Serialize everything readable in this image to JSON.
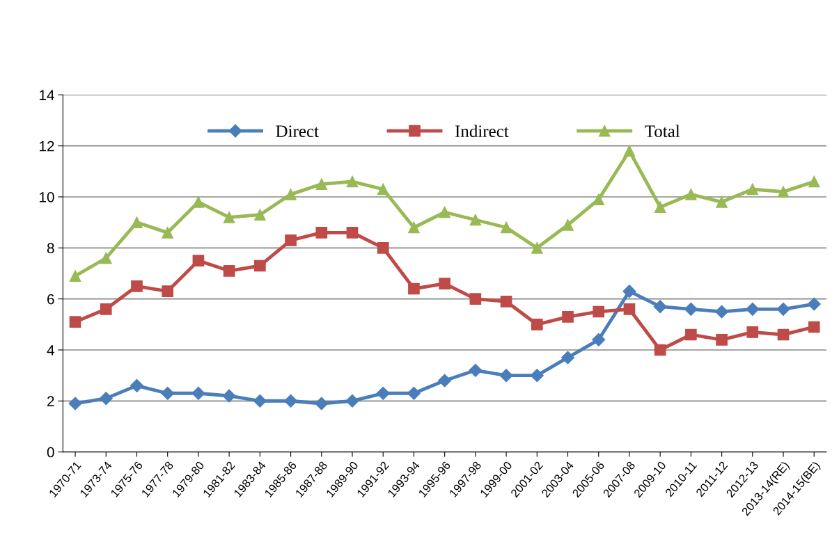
{
  "chart_data": {
    "type": "line",
    "categories": [
      "1970-71",
      "1973-74",
      "1975-76",
      "1977-78",
      "1979-80",
      "1981-82",
      "1983-84",
      "1985-86",
      "1987-88",
      "1989-90",
      "1991-92",
      "1993-94",
      "1995-96",
      "1997-98",
      "1999-00",
      "2001-02",
      "2003-04",
      "2005-06",
      "2007-08",
      "2009-10",
      "2010-11",
      "2011-12",
      "2012-13",
      "2013-14(RE)",
      "2014-15(BE)"
    ],
    "series": [
      {
        "name": "Direct",
        "color": "#4a7ebb",
        "marker": "diamond",
        "values": [
          1.9,
          2.1,
          2.6,
          2.3,
          2.3,
          2.2,
          2.0,
          2.0,
          1.9,
          2.0,
          2.3,
          2.3,
          2.8,
          3.2,
          3.0,
          3.0,
          3.7,
          4.4,
          6.3,
          5.7,
          5.6,
          5.5,
          5.6,
          5.6,
          5.8
        ]
      },
      {
        "name": "Indirect",
        "color": "#be4b48",
        "marker": "square",
        "values": [
          5.1,
          5.6,
          6.5,
          6.3,
          7.5,
          7.1,
          7.3,
          8.3,
          8.6,
          8.6,
          8.0,
          6.4,
          6.6,
          6.0,
          5.9,
          5.0,
          5.3,
          5.5,
          5.6,
          4.0,
          4.6,
          4.4,
          4.7,
          4.6,
          4.9
        ]
      },
      {
        "name": "Total",
        "color": "#98b954",
        "marker": "triangle",
        "values": [
          6.9,
          7.6,
          9.0,
          8.6,
          9.8,
          9.2,
          9.3,
          10.1,
          10.5,
          10.6,
          10.3,
          8.8,
          9.4,
          9.1,
          8.8,
          8.0,
          8.9,
          9.9,
          11.8,
          9.6,
          10.1,
          9.8,
          10.3,
          10.2,
          10.6
        ]
      }
    ],
    "ylim": [
      0,
      14
    ],
    "yticks": [
      0,
      2,
      4,
      6,
      8,
      10,
      12,
      14
    ],
    "grid": "y",
    "legend": "top",
    "line_style": "solid"
  }
}
